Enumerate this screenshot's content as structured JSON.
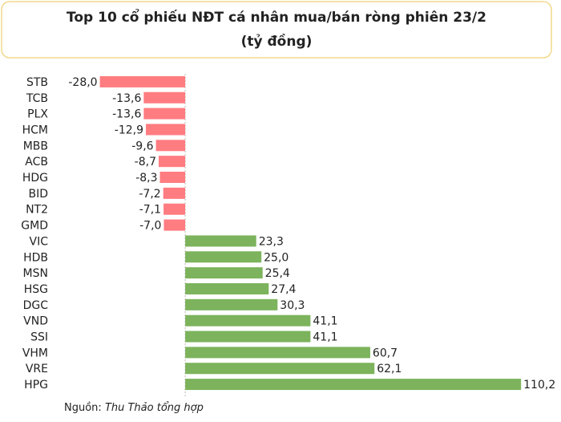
{
  "chart_data": {
    "type": "hbar",
    "title": "Top 10 cổ phiếu NĐT cá nhân mua/bán ròng phiên 23/2",
    "subtitle": "(tỷ đồng)",
    "source": {
      "label": "Nguồn:",
      "text": "Thu Thảo tổng hợp"
    },
    "categories": [
      "STB",
      "TCB",
      "PLX",
      "HCM",
      "MBB",
      "ACB",
      "HDG",
      "BID",
      "NT2",
      "GMD",
      "VIC",
      "HDB",
      "MSN",
      "HSG",
      "DGC",
      "VND",
      "SSI",
      "VHM",
      "VRE",
      "HPG"
    ],
    "values": [
      -28.0,
      -13.6,
      -13.6,
      -12.9,
      -9.6,
      -8.7,
      -8.3,
      -7.2,
      -7.1,
      -7.0,
      23.3,
      25.0,
      25.4,
      27.4,
      30.3,
      41.1,
      41.1,
      60.7,
      62.1,
      110.2
    ],
    "value_labels": [
      "-28,0",
      "-13,6",
      "-13,6",
      "-12,9",
      "-9,6",
      "-8,7",
      "-8,3",
      "-7,2",
      "-7,1",
      "-7,0",
      "23,3",
      "25,0",
      "25,4",
      "27,4",
      "30,3",
      "41,1",
      "41,1",
      "60,7",
      "62,1",
      "110,2"
    ],
    "color": "#7cb35c",
    "negative_color": "#ff7c80",
    "xlim": [
      -30,
      112
    ]
  }
}
